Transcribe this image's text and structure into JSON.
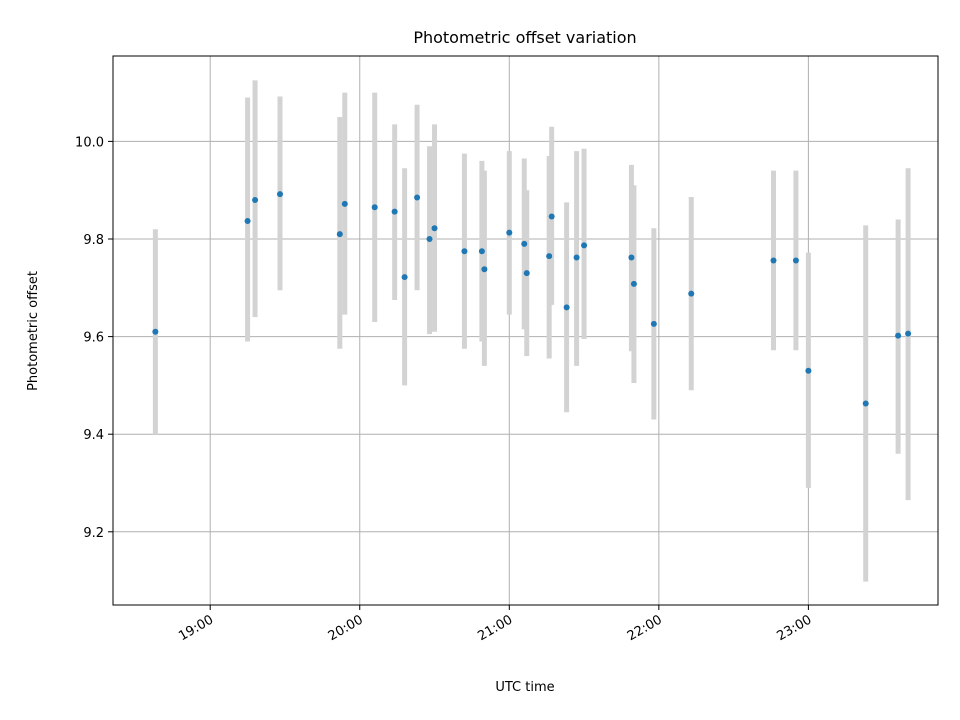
{
  "chart_data": {
    "type": "scatter",
    "title": "Photometric offset variation",
    "xlabel": "UTC time",
    "ylabel": "Photometric offset",
    "x_axis_type": "time",
    "xlim": [
      "18:21",
      "23:52"
    ],
    "ylim": [
      9.05,
      10.175
    ],
    "grid": true,
    "legend": "none",
    "colors": {
      "point": "#1f77b4",
      "errorbar": "#d3d3d3",
      "grid": "#b0b0b0",
      "axes": "#000000"
    },
    "x_ticks": [
      "19:00",
      "20:00",
      "21:00",
      "22:00",
      "23:00"
    ],
    "y_ticks": [
      9.2,
      9.4,
      9.6,
      9.8,
      10.0
    ],
    "y_tick_labels": [
      "9.2",
      "9.4",
      "9.6",
      "9.8",
      "10.0"
    ],
    "points": [
      {
        "x": "18:38",
        "y": 9.61,
        "err_low": 9.4,
        "err_high": 9.82
      },
      {
        "x": "19:15",
        "y": 9.837,
        "err_low": 9.59,
        "err_high": 10.09
      },
      {
        "x": "19:18",
        "y": 9.88,
        "err_low": 9.64,
        "err_high": 10.125
      },
      {
        "x": "19:28",
        "y": 9.892,
        "err_low": 9.695,
        "err_high": 10.092
      },
      {
        "x": "19:52",
        "y": 9.81,
        "err_low": 9.575,
        "err_high": 10.05
      },
      {
        "x": "19:54",
        "y": 9.872,
        "err_low": 9.645,
        "err_high": 10.1
      },
      {
        "x": "20:06",
        "y": 9.865,
        "err_low": 9.63,
        "err_high": 10.1
      },
      {
        "x": "20:14",
        "y": 9.856,
        "err_low": 9.675,
        "err_high": 10.035
      },
      {
        "x": "20:18",
        "y": 9.722,
        "err_low": 9.5,
        "err_high": 9.945
      },
      {
        "x": "20:23",
        "y": 9.885,
        "err_low": 9.695,
        "err_high": 10.075
      },
      {
        "x": "20:28",
        "y": 9.8,
        "err_low": 9.605,
        "err_high": 9.99
      },
      {
        "x": "20:30",
        "y": 9.822,
        "err_low": 9.61,
        "err_high": 10.035
      },
      {
        "x": "20:42",
        "y": 9.775,
        "err_low": 9.575,
        "err_high": 9.975
      },
      {
        "x": "20:49",
        "y": 9.775,
        "err_low": 9.59,
        "err_high": 9.96
      },
      {
        "x": "20:50",
        "y": 9.738,
        "err_low": 9.54,
        "err_high": 9.94
      },
      {
        "x": "21:00",
        "y": 9.813,
        "err_low": 9.645,
        "err_high": 9.98
      },
      {
        "x": "21:06",
        "y": 9.79,
        "err_low": 9.615,
        "err_high": 9.965
      },
      {
        "x": "21:07",
        "y": 9.73,
        "err_low": 9.56,
        "err_high": 9.9
      },
      {
        "x": "21:16",
        "y": 9.765,
        "err_low": 9.555,
        "err_high": 9.97
      },
      {
        "x": "21:17",
        "y": 9.846,
        "err_low": 9.665,
        "err_high": 10.03
      },
      {
        "x": "21:23",
        "y": 9.66,
        "err_low": 9.445,
        "err_high": 9.875
      },
      {
        "x": "21:27",
        "y": 9.762,
        "err_low": 9.54,
        "err_high": 9.98
      },
      {
        "x": "21:30",
        "y": 9.787,
        "err_low": 9.595,
        "err_high": 9.985
      },
      {
        "x": "21:49",
        "y": 9.762,
        "err_low": 9.57,
        "err_high": 9.952
      },
      {
        "x": "21:50",
        "y": 9.708,
        "err_low": 9.505,
        "err_high": 9.91
      },
      {
        "x": "21:58",
        "y": 9.626,
        "err_low": 9.43,
        "err_high": 9.822
      },
      {
        "x": "22:13",
        "y": 9.688,
        "err_low": 9.49,
        "err_high": 9.886
      },
      {
        "x": "22:46",
        "y": 9.756,
        "err_low": 9.572,
        "err_high": 9.94
      },
      {
        "x": "22:55",
        "y": 9.756,
        "err_low": 9.572,
        "err_high": 9.94
      },
      {
        "x": "23:00",
        "y": 9.53,
        "err_low": 9.29,
        "err_high": 9.772
      },
      {
        "x": "23:23",
        "y": 9.463,
        "err_low": 9.098,
        "err_high": 9.828
      },
      {
        "x": "23:36",
        "y": 9.602,
        "err_low": 9.36,
        "err_high": 9.84
      },
      {
        "x": "23:40",
        "y": 9.606,
        "err_low": 9.265,
        "err_high": 9.945
      }
    ]
  }
}
